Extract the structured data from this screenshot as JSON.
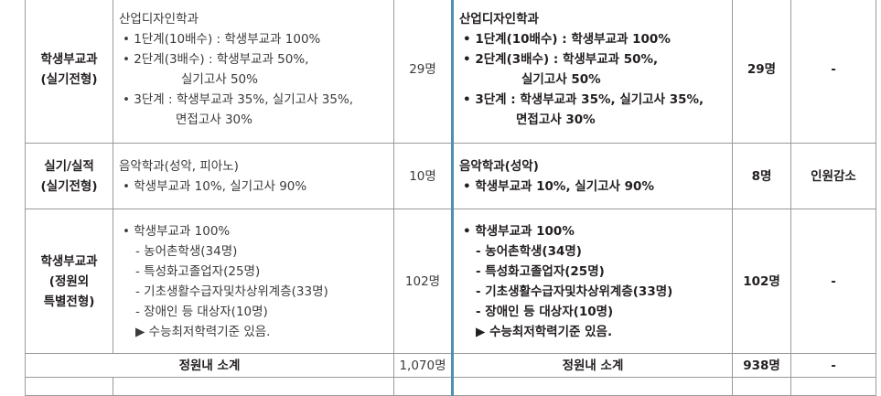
{
  "rows": [
    {
      "category": [
        "학생부교과",
        "(실기전형)"
      ],
      "old_lines": [
        {
          "t": "산업디자인학과",
          "k": "plain"
        },
        {
          "t": "1단계(10배수) : 학생부교과 100%",
          "k": "bullet"
        },
        {
          "t": "2단계(3배수) : 학생부교과 50%,",
          "k": "bullet"
        },
        {
          "t": "실기고사 50%",
          "k": "indent"
        },
        {
          "t": "3단계 : 학생부교과 35%, 실기고사 35%,",
          "k": "bullet"
        },
        {
          "t": "면접고사 30%",
          "k": "indent2"
        }
      ],
      "old_count": "29명",
      "new_lines": [
        {
          "t": "산업디자인학과",
          "k": "plain"
        },
        {
          "t": "1단계(10배수) : 학생부교과 100%",
          "k": "bullet"
        },
        {
          "t": "2단계(3배수) : 학생부교과 50%,",
          "k": "bullet"
        },
        {
          "t": "실기고사 50%",
          "k": "indent"
        },
        {
          "t": "3단계 : 학생부교과 35%, 실기고사 35%,",
          "k": "bullet"
        },
        {
          "t": "면접고사 30%",
          "k": "indent2"
        }
      ],
      "new_count": "29명",
      "note": "-"
    },
    {
      "category": [
        "실기/실적",
        "(실기전형)"
      ],
      "old_lines": [
        {
          "t": "음악학과(성악, 피아노)",
          "k": "plain"
        },
        {
          "t": "학생부교과 10%, 실기고사 90%",
          "k": "bullet"
        }
      ],
      "old_count": "10명",
      "new_lines": [
        {
          "t": "음악학과(성악)",
          "k": "plain"
        },
        {
          "t": "학생부교과 10%, 실기고사 90%",
          "k": "bullet"
        }
      ],
      "new_count": "8명",
      "note": "인원감소"
    },
    {
      "category": [
        "학생부교과",
        "(정원외",
        "특별전형)"
      ],
      "old_lines": [
        {
          "t": "학생부교과 100%",
          "k": "bullet"
        },
        {
          "t": "- 농어촌학생(34명)",
          "k": "dash"
        },
        {
          "t": "- 특성화고졸업자(25명)",
          "k": "dash"
        },
        {
          "t": "- 기초생활수급자및차상위계층(33명)",
          "k": "dash"
        },
        {
          "t": "- 장애인 등 대상자(10명)",
          "k": "dash"
        },
        {
          "t": "▶ 수능최저학력기준 있음.",
          "k": "arrow"
        }
      ],
      "old_count": "102명",
      "new_lines": [
        {
          "t": "학생부교과 100%",
          "k": "bullet"
        },
        {
          "t": "- 농어촌학생(34명)",
          "k": "dash"
        },
        {
          "t": "- 특성화고졸업자(25명)",
          "k": "dash"
        },
        {
          "t": "- 기초생활수급자및차상위계층(33명)",
          "k": "dash"
        },
        {
          "t": "- 장애인 등 대상자(10명)",
          "k": "dash"
        },
        {
          "t": "▶ 수능최저학력기준 있음.",
          "k": "arrow"
        }
      ],
      "new_count": "102명",
      "note": "-"
    }
  ],
  "subtotal": {
    "old_label": "정원내 소계",
    "old_count": "1,070명",
    "new_label": "정원내 소계",
    "new_count": "938명",
    "note": "-"
  },
  "colors": {
    "divider": "#4f8fb0",
    "grid": "#9a9a9a",
    "text": "#231f20"
  }
}
